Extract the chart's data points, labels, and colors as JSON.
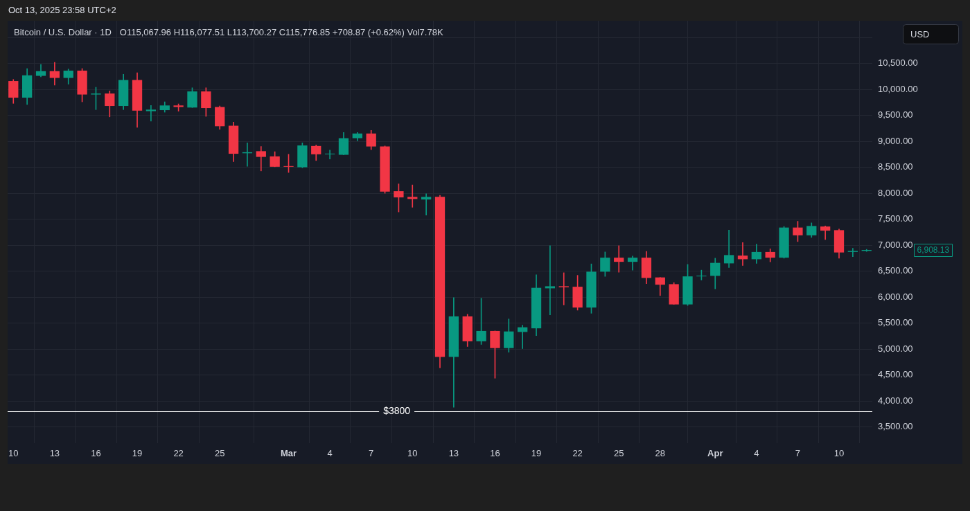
{
  "chart_data": {
    "type": "candlestick",
    "title": "Bitcoin / U.S. Dollar · 1D",
    "subtitle": "O115,067.96 H116,077.51 L113,700.27 C115,776.85 +708.87 (+0.62%) Vol7.78K",
    "ylabel": "USD",
    "annotations": [
      "Oct 13, 2025 23:58 UTC+2"
    ],
    "x": [
      "--02-10",
      "--02-11",
      "--02-12",
      "--02-13",
      "--02-14",
      "--02-15",
      "--02-16",
      "--02-17",
      "--02-18",
      "--02-19",
      "--02-20",
      "--02-21",
      "--02-22",
      "--02-23",
      "--02-24",
      "--02-25",
      "--02-26",
      "--02-27",
      "--02-28",
      "--02-29",
      "--03-01",
      "--03-02",
      "--03-03",
      "--03-04",
      "--03-05",
      "--03-06",
      "--03-07",
      "--03-08",
      "--03-09",
      "--03-10",
      "--03-11",
      "--03-12",
      "--03-13",
      "--03-14",
      "--03-15",
      "--03-16",
      "--03-17",
      "--03-18",
      "--03-19",
      "--03-20",
      "--03-21",
      "--03-22",
      "--03-23",
      "--03-24",
      "--03-25",
      "--03-26",
      "--03-27",
      "--03-28",
      "--03-29",
      "--03-30",
      "--03-31",
      "--04-01",
      "--04-02",
      "--04-03",
      "--04-04",
      "--04-05",
      "--04-06",
      "--04-07",
      "--04-08",
      "--04-09",
      "--04-10",
      "--04-11",
      "--04-12"
    ],
    "ohlc": [
      [
        10160,
        10190,
        9730,
        9840
      ],
      [
        9840,
        10400,
        9710,
        10270
      ],
      [
        10260,
        10480,
        10240,
        10350
      ],
      [
        10350,
        10520,
        10080,
        10220
      ],
      [
        10220,
        10390,
        10100,
        10360
      ],
      [
        10360,
        10400,
        9760,
        9900
      ],
      [
        9900,
        10040,
        9610,
        9920
      ],
      [
        9920,
        9970,
        9470,
        9680
      ],
      [
        9680,
        10290,
        9610,
        10180
      ],
      [
        10180,
        10320,
        9270,
        9590
      ],
      [
        9580,
        9690,
        9390,
        9610
      ],
      [
        9600,
        9760,
        9560,
        9690
      ],
      [
        9690,
        9720,
        9580,
        9660
      ],
      [
        9650,
        10030,
        9650,
        9960
      ],
      [
        9960,
        10030,
        9480,
        9640
      ],
      [
        9660,
        9680,
        9230,
        9290
      ],
      [
        9300,
        9370,
        8610,
        8760
      ],
      [
        8770,
        8970,
        8520,
        8790
      ],
      [
        8810,
        8900,
        8430,
        8700
      ],
      [
        8710,
        8800,
        8510,
        8510
      ],
      [
        8520,
        8750,
        8400,
        8510
      ],
      [
        8500,
        8970,
        8490,
        8920
      ],
      [
        8910,
        8930,
        8630,
        8750
      ],
      [
        8750,
        8830,
        8660,
        8760
      ],
      [
        8740,
        9170,
        8740,
        9060
      ],
      [
        9060,
        9170,
        9010,
        9150
      ],
      [
        9150,
        9210,
        8840,
        8900
      ],
      [
        8900,
        8910,
        8000,
        8030
      ],
      [
        8040,
        8180,
        7640,
        7920
      ],
      [
        7930,
        8160,
        7730,
        7890
      ],
      [
        7880,
        7990,
        7580,
        7930
      ],
      [
        7930,
        7960,
        4640,
        4850
      ],
      [
        4850,
        5990,
        3880,
        5630
      ],
      [
        5630,
        5670,
        5050,
        5150
      ],
      [
        5150,
        5980,
        5090,
        5350
      ],
      [
        5350,
        5350,
        4440,
        5020
      ],
      [
        5020,
        5580,
        4940,
        5340
      ],
      [
        5330,
        5460,
        5010,
        5420
      ],
      [
        5400,
        6430,
        5260,
        6180
      ],
      [
        6170,
        6990,
        5660,
        6210
      ],
      [
        6210,
        6470,
        5850,
        6190
      ],
      [
        6200,
        6420,
        5750,
        5800
      ],
      [
        5800,
        6640,
        5690,
        6490
      ],
      [
        6490,
        6870,
        6400,
        6760
      ],
      [
        6760,
        6990,
        6480,
        6680
      ],
      [
        6680,
        6790,
        6520,
        6760
      ],
      [
        6760,
        6880,
        6260,
        6370
      ],
      [
        6380,
        6380,
        6030,
        6240
      ],
      [
        6250,
        6280,
        5860,
        5860
      ],
      [
        5860,
        6630,
        5840,
        6400
      ],
      [
        6400,
        6520,
        6330,
        6410
      ],
      [
        6410,
        6750,
        6160,
        6660
      ],
      [
        6650,
        7290,
        6570,
        6810
      ],
      [
        6800,
        7050,
        6610,
        6730
      ],
      [
        6730,
        7020,
        6650,
        6870
      ],
      [
        6870,
        6930,
        6680,
        6760
      ],
      [
        6760,
        7360,
        6750,
        7340
      ],
      [
        7340,
        7460,
        7070,
        7190
      ],
      [
        7190,
        7430,
        7150,
        7370
      ],
      [
        7360,
        7370,
        7110,
        7280
      ],
      [
        7290,
        7310,
        6750,
        6860
      ],
      [
        6870,
        6940,
        6780,
        6890
      ],
      [
        6890,
        6920,
        6880,
        6908.13
      ]
    ],
    "colors": [
      "#f23645",
      "#089981",
      "#089981",
      "#f23645",
      "#089981",
      "#f23645",
      "#089981",
      "#f23645",
      "#089981",
      "#f23645",
      "#089981",
      "#089981",
      "#f23645",
      "#089981",
      "#f23645",
      "#f23645",
      "#f23645",
      "#089981",
      "#f23645",
      "#f23645",
      "#f23645",
      "#089981",
      "#f23645",
      "#089981",
      "#089981",
      "#089981",
      "#f23645",
      "#f23645",
      "#f23645",
      "#f23645",
      "#089981",
      "#f23645",
      "#089981",
      "#f23645",
      "#089981",
      "#f23645",
      "#089981",
      "#089981",
      "#089981",
      "#089981",
      "#f23645",
      "#f23645",
      "#089981",
      "#089981",
      "#f23645",
      "#089981",
      "#f23645",
      "#f23645",
      "#f23645",
      "#089981",
      "#089981",
      "#089981",
      "#089981",
      "#f23645",
      "#089981",
      "#f23645",
      "#089981",
      "#f23645",
      "#089981",
      "#f23645",
      "#f23645",
      "#089981",
      "#089981"
    ],
    "value_labels": [
      null,
      null,
      null,
      null,
      null,
      null,
      null,
      null,
      null,
      null,
      null,
      null,
      null,
      null,
      null,
      null,
      null,
      null,
      null,
      null,
      null,
      null,
      null,
      null,
      null,
      null,
      null,
      null,
      null,
      null,
      null,
      null,
      null,
      null,
      null,
      null,
      null,
      null,
      null,
      null,
      null,
      null,
      null,
      null,
      null,
      null,
      null,
      null,
      null,
      null,
      null,
      null,
      null,
      null,
      null,
      null,
      null,
      null,
      null,
      null,
      null,
      null,
      "6,908.13"
    ],
    "xlim": [
      "--02-09T14:00",
      "--04-12T10:00"
    ],
    "xticks": [
      {
        "value": "--02-10",
        "label": "10"
      },
      {
        "value": "--02-13",
        "label": "13"
      },
      {
        "value": "--02-16",
        "label": "16"
      },
      {
        "value": "--02-19",
        "label": "19"
      },
      {
        "value": "--02-22",
        "label": "22"
      },
      {
        "value": "--02-25",
        "label": "25"
      },
      {
        "value": "--03-01",
        "label": "Mar"
      },
      {
        "value": "--03-04",
        "label": "4"
      },
      {
        "value": "--03-07",
        "label": "7"
      },
      {
        "value": "--03-10",
        "label": "10"
      },
      {
        "value": "--03-13",
        "label": "13"
      },
      {
        "value": "--03-16",
        "label": "16"
      },
      {
        "value": "--03-19",
        "label": "19"
      },
      {
        "value": "--03-22",
        "label": "22"
      },
      {
        "value": "--03-25",
        "label": "25"
      },
      {
        "value": "--03-28",
        "label": "28"
      },
      {
        "value": "--04-01",
        "label": "Apr"
      },
      {
        "value": "--04-04",
        "label": "4"
      },
      {
        "value": "--04-07",
        "label": "7"
      },
      {
        "value": "--04-10",
        "label": "10"
      }
    ],
    "ylim": [
      3190,
      11320
    ],
    "yticks": [
      {
        "value": 3500,
        "label": "3,500.00"
      },
      {
        "value": 4000,
        "label": "4,000.00"
      },
      {
        "value": 4500,
        "label": "4,500.00"
      },
      {
        "value": 5000,
        "label": "5,000.00"
      },
      {
        "value": 5500,
        "label": "5,500.00"
      },
      {
        "value": 6000,
        "label": "6,000.00"
      },
      {
        "value": 6500,
        "label": "6,500.00"
      },
      {
        "value": 7000,
        "label": "7,000.00"
      },
      {
        "value": 7500,
        "label": "7,500.00"
      },
      {
        "value": 8000,
        "label": "8,000.00"
      },
      {
        "value": 8500,
        "label": "8,500.00"
      },
      {
        "value": 9000,
        "label": "9,000.00"
      },
      {
        "value": 9500,
        "label": "9,500.00"
      },
      {
        "value": 10000,
        "label": "10,000.00"
      },
      {
        "value": 10500,
        "label": "10,500.00"
      },
      {
        "value": 11000,
        "label": null
      }
    ],
    "ref_lines": [
      {
        "axis": "y",
        "value": 3800,
        "label": "$3800",
        "color": "#ffffff"
      }
    ],
    "grid": true
  }
}
